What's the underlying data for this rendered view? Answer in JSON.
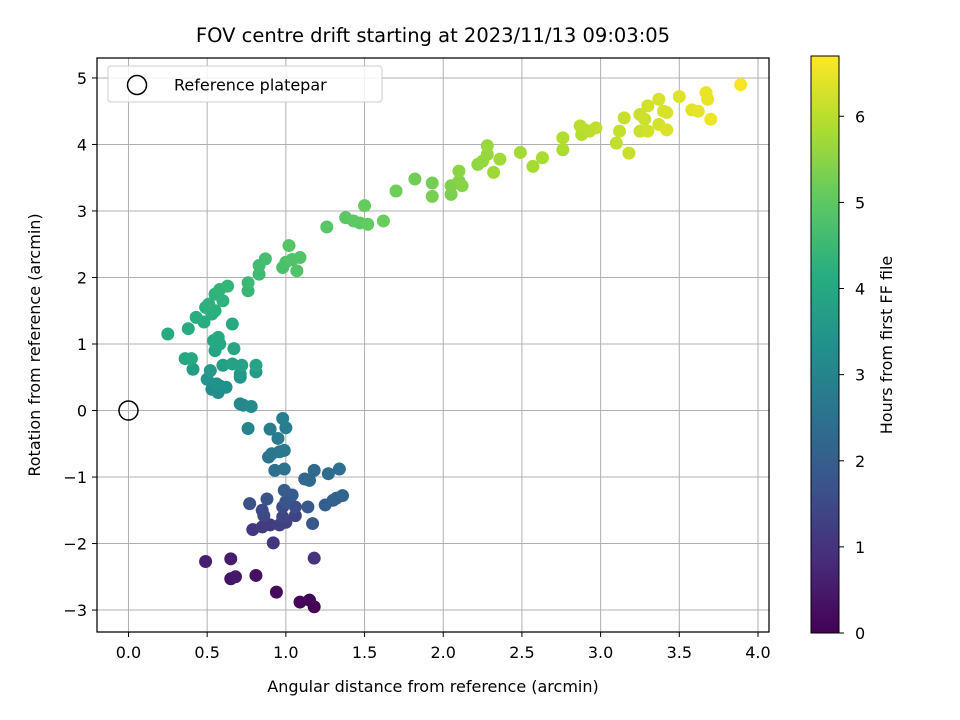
{
  "chart_data": {
    "type": "scatter",
    "title": "FOV centre drift starting at 2023/11/13 09:03:05",
    "xlabel": "Angular distance from reference (arcmin)",
    "ylabel": "Rotation from reference (arcmin)",
    "xlim": [
      -0.2,
      4.07
    ],
    "ylim": [
      -3.33,
      5.3
    ],
    "xticks": [
      "0.0",
      "0.5",
      "1.0",
      "1.5",
      "2.0",
      "2.5",
      "3.0",
      "3.5",
      "4.0"
    ],
    "yticks": [
      "−3",
      "−2",
      "−1",
      "0",
      "1",
      "2",
      "3",
      "4",
      "5"
    ],
    "grid": true,
    "legend": {
      "placement": "upper-left",
      "entries": [
        "Reference platepar"
      ]
    },
    "reference_point": {
      "x": 0.0,
      "y": 0.0,
      "label": "Reference platepar"
    },
    "colorbar": {
      "label": "Hours from first FF file",
      "colormap": "viridis",
      "range": [
        0,
        6.7
      ],
      "ticks": [
        "0",
        "1",
        "2",
        "3",
        "4",
        "5",
        "6"
      ]
    },
    "points": [
      {
        "x": 1.18,
        "y": -2.95,
        "h": 0.03
      },
      {
        "x": 1.15,
        "y": -2.85,
        "h": 0.08
      },
      {
        "x": 1.09,
        "y": -2.88,
        "h": 0.12
      },
      {
        "x": 0.94,
        "y": -2.73,
        "h": 0.2
      },
      {
        "x": 0.81,
        "y": -2.48,
        "h": 0.3
      },
      {
        "x": 0.65,
        "y": -2.53,
        "h": 0.38
      },
      {
        "x": 0.68,
        "y": -2.5,
        "h": 0.45
      },
      {
        "x": 0.65,
        "y": -2.23,
        "h": 0.52
      },
      {
        "x": 0.49,
        "y": -2.27,
        "h": 0.6
      },
      {
        "x": 1.18,
        "y": -2.22,
        "h": 1.0
      },
      {
        "x": 0.92,
        "y": -1.99,
        "h": 1.05
      },
      {
        "x": 0.79,
        "y": -1.79,
        "h": 1.1
      },
      {
        "x": 0.85,
        "y": -1.75,
        "h": 1.15
      },
      {
        "x": 0.9,
        "y": -1.72,
        "h": 1.2
      },
      {
        "x": 0.96,
        "y": -1.72,
        "h": 1.25
      },
      {
        "x": 1.0,
        "y": -1.68,
        "h": 1.3
      },
      {
        "x": 1.06,
        "y": -1.58,
        "h": 1.35
      },
      {
        "x": 0.98,
        "y": -1.6,
        "h": 1.4
      },
      {
        "x": 0.86,
        "y": -1.58,
        "h": 1.45
      },
      {
        "x": 0.85,
        "y": -1.5,
        "h": 1.5
      },
      {
        "x": 0.98,
        "y": -1.45,
        "h": 1.55
      },
      {
        "x": 1.06,
        "y": -1.45,
        "h": 1.6
      },
      {
        "x": 0.77,
        "y": -1.4,
        "h": 1.65
      },
      {
        "x": 0.88,
        "y": -1.33,
        "h": 1.7
      },
      {
        "x": 1.0,
        "y": -1.37,
        "h": 1.75
      },
      {
        "x": 1.17,
        "y": -1.7,
        "h": 1.8
      },
      {
        "x": 1.14,
        "y": -1.45,
        "h": 1.85
      },
      {
        "x": 1.04,
        "y": -1.27,
        "h": 1.9
      },
      {
        "x": 0.99,
        "y": -1.2,
        "h": 1.95
      },
      {
        "x": 1.25,
        "y": -1.42,
        "h": 2.0
      },
      {
        "x": 1.3,
        "y": -1.35,
        "h": 2.05
      },
      {
        "x": 1.32,
        "y": -1.32,
        "h": 2.1
      },
      {
        "x": 1.36,
        "y": -1.28,
        "h": 2.15
      },
      {
        "x": 1.12,
        "y": -1.03,
        "h": 2.2
      },
      {
        "x": 1.15,
        "y": -1.05,
        "h": 2.25
      },
      {
        "x": 1.18,
        "y": -0.9,
        "h": 2.3
      },
      {
        "x": 1.27,
        "y": -0.95,
        "h": 2.35
      },
      {
        "x": 1.34,
        "y": -0.88,
        "h": 2.4
      },
      {
        "x": 0.93,
        "y": -0.9,
        "h": 2.45
      },
      {
        "x": 0.99,
        "y": -0.88,
        "h": 2.5
      },
      {
        "x": 0.89,
        "y": -0.7,
        "h": 2.55
      },
      {
        "x": 0.91,
        "y": -0.65,
        "h": 2.6
      },
      {
        "x": 0.96,
        "y": -0.62,
        "h": 2.65
      },
      {
        "x": 0.99,
        "y": -0.6,
        "h": 2.7
      },
      {
        "x": 0.95,
        "y": -0.42,
        "h": 2.75
      },
      {
        "x": 0.9,
        "y": -0.28,
        "h": 2.8
      },
      {
        "x": 1.0,
        "y": -0.26,
        "h": 2.85
      },
      {
        "x": 0.98,
        "y": -0.12,
        "h": 2.9
      },
      {
        "x": 0.76,
        "y": -0.27,
        "h": 3.0
      },
      {
        "x": 0.71,
        "y": 0.1,
        "h": 3.05
      },
      {
        "x": 0.73,
        "y": 0.08,
        "h": 3.1
      },
      {
        "x": 0.78,
        "y": 0.06,
        "h": 3.15
      },
      {
        "x": 0.57,
        "y": 0.27,
        "h": 3.2
      },
      {
        "x": 0.53,
        "y": 0.32,
        "h": 3.25
      },
      {
        "x": 0.58,
        "y": 0.37,
        "h": 3.3
      },
      {
        "x": 0.62,
        "y": 0.35,
        "h": 3.35
      },
      {
        "x": 0.56,
        "y": 0.4,
        "h": 3.4
      },
      {
        "x": 0.5,
        "y": 0.47,
        "h": 3.45
      },
      {
        "x": 0.71,
        "y": 0.5,
        "h": 3.5
      },
      {
        "x": 0.71,
        "y": 0.55,
        "h": 3.55
      },
      {
        "x": 0.81,
        "y": 0.58,
        "h": 3.6
      },
      {
        "x": 0.52,
        "y": 0.6,
        "h": 3.65
      },
      {
        "x": 0.41,
        "y": 0.62,
        "h": 3.7
      },
      {
        "x": 0.6,
        "y": 0.68,
        "h": 3.75
      },
      {
        "x": 0.66,
        "y": 0.7,
        "h": 3.8
      },
      {
        "x": 0.72,
        "y": 0.68,
        "h": 3.85
      },
      {
        "x": 0.81,
        "y": 0.68,
        "h": 3.9
      },
      {
        "x": 0.36,
        "y": 0.78,
        "h": 3.95
      },
      {
        "x": 0.4,
        "y": 0.78,
        "h": 4.0
      },
      {
        "x": 0.55,
        "y": 0.9,
        "h": 3.92
      },
      {
        "x": 0.67,
        "y": 0.93,
        "h": 3.95
      },
      {
        "x": 0.58,
        "y": 1.0,
        "h": 4.0
      },
      {
        "x": 0.54,
        "y": 1.05,
        "h": 4.02
      },
      {
        "x": 0.57,
        "y": 1.1,
        "h": 4.05
      },
      {
        "x": 0.66,
        "y": 1.3,
        "h": 4.08
      },
      {
        "x": 0.25,
        "y": 1.15,
        "h": 4.1
      },
      {
        "x": 0.38,
        "y": 1.23,
        "h": 4.12
      },
      {
        "x": 0.48,
        "y": 1.33,
        "h": 4.15
      },
      {
        "x": 0.43,
        "y": 1.4,
        "h": 4.18
      },
      {
        "x": 0.53,
        "y": 1.45,
        "h": 4.2
      },
      {
        "x": 0.55,
        "y": 1.5,
        "h": 4.22
      },
      {
        "x": 0.49,
        "y": 1.55,
        "h": 4.25
      },
      {
        "x": 0.51,
        "y": 1.6,
        "h": 4.28
      },
      {
        "x": 0.6,
        "y": 1.65,
        "h": 4.3
      },
      {
        "x": 0.55,
        "y": 1.75,
        "h": 4.32
      },
      {
        "x": 0.58,
        "y": 1.82,
        "h": 4.35
      },
      {
        "x": 0.63,
        "y": 1.87,
        "h": 4.4
      },
      {
        "x": 0.76,
        "y": 1.8,
        "h": 4.45
      },
      {
        "x": 0.76,
        "y": 1.92,
        "h": 4.5
      },
      {
        "x": 0.83,
        "y": 2.05,
        "h": 4.55
      },
      {
        "x": 0.83,
        "y": 2.18,
        "h": 4.6
      },
      {
        "x": 0.87,
        "y": 2.28,
        "h": 4.65
      },
      {
        "x": 0.98,
        "y": 2.15,
        "h": 4.7
      },
      {
        "x": 1.0,
        "y": 2.23,
        "h": 4.75
      },
      {
        "x": 1.07,
        "y": 2.1,
        "h": 4.8
      },
      {
        "x": 1.04,
        "y": 2.27,
        "h": 4.82
      },
      {
        "x": 1.09,
        "y": 2.3,
        "h": 4.85
      },
      {
        "x": 1.02,
        "y": 2.48,
        "h": 4.88
      },
      {
        "x": 1.26,
        "y": 2.76,
        "h": 4.92
      },
      {
        "x": 1.38,
        "y": 2.9,
        "h": 4.96
      },
      {
        "x": 1.43,
        "y": 2.85,
        "h": 5.0
      },
      {
        "x": 1.47,
        "y": 2.82,
        "h": 5.03
      },
      {
        "x": 1.52,
        "y": 2.8,
        "h": 5.06
      },
      {
        "x": 1.5,
        "y": 3.08,
        "h": 5.1
      },
      {
        "x": 1.62,
        "y": 2.85,
        "h": 5.14
      },
      {
        "x": 1.7,
        "y": 3.3,
        "h": 5.18
      },
      {
        "x": 1.82,
        "y": 3.48,
        "h": 5.22
      },
      {
        "x": 1.93,
        "y": 3.42,
        "h": 5.26
      },
      {
        "x": 1.93,
        "y": 3.22,
        "h": 5.3
      },
      {
        "x": 2.05,
        "y": 3.25,
        "h": 5.34
      },
      {
        "x": 2.05,
        "y": 3.38,
        "h": 5.38
      },
      {
        "x": 2.1,
        "y": 3.45,
        "h": 5.42
      },
      {
        "x": 2.12,
        "y": 3.38,
        "h": 5.46
      },
      {
        "x": 2.1,
        "y": 3.6,
        "h": 5.5
      },
      {
        "x": 2.22,
        "y": 3.7,
        "h": 5.55
      },
      {
        "x": 2.25,
        "y": 3.75,
        "h": 5.6
      },
      {
        "x": 2.28,
        "y": 3.85,
        "h": 5.63
      },
      {
        "x": 2.28,
        "y": 3.98,
        "h": 5.66
      },
      {
        "x": 2.32,
        "y": 3.58,
        "h": 5.7
      },
      {
        "x": 2.36,
        "y": 3.78,
        "h": 5.73
      },
      {
        "x": 2.49,
        "y": 3.88,
        "h": 5.76
      },
      {
        "x": 2.57,
        "y": 3.67,
        "h": 5.8
      },
      {
        "x": 2.63,
        "y": 3.8,
        "h": 5.83
      },
      {
        "x": 2.76,
        "y": 3.92,
        "h": 5.86
      },
      {
        "x": 2.76,
        "y": 4.1,
        "h": 5.9
      },
      {
        "x": 2.88,
        "y": 4.15,
        "h": 5.93
      },
      {
        "x": 2.9,
        "y": 4.22,
        "h": 5.96
      },
      {
        "x": 2.87,
        "y": 4.28,
        "h": 6.0
      },
      {
        "x": 2.93,
        "y": 4.2,
        "h": 6.02
      },
      {
        "x": 2.97,
        "y": 4.25,
        "h": 6.05
      },
      {
        "x": 3.1,
        "y": 4.02,
        "h": 6.08
      },
      {
        "x": 3.12,
        "y": 4.2,
        "h": 6.1
      },
      {
        "x": 3.15,
        "y": 4.4,
        "h": 6.12
      },
      {
        "x": 3.18,
        "y": 3.87,
        "h": 6.14
      },
      {
        "x": 3.25,
        "y": 4.2,
        "h": 6.16
      },
      {
        "x": 3.25,
        "y": 4.45,
        "h": 6.18
      },
      {
        "x": 3.28,
        "y": 4.38,
        "h": 6.2
      },
      {
        "x": 3.3,
        "y": 4.58,
        "h": 6.22
      },
      {
        "x": 3.3,
        "y": 4.2,
        "h": 6.24
      },
      {
        "x": 3.37,
        "y": 4.3,
        "h": 6.26
      },
      {
        "x": 3.37,
        "y": 4.68,
        "h": 6.28
      },
      {
        "x": 3.4,
        "y": 4.5,
        "h": 6.3
      },
      {
        "x": 3.42,
        "y": 4.48,
        "h": 6.32
      },
      {
        "x": 3.42,
        "y": 4.22,
        "h": 6.34
      },
      {
        "x": 3.5,
        "y": 4.72,
        "h": 6.38
      },
      {
        "x": 3.58,
        "y": 4.52,
        "h": 6.42
      },
      {
        "x": 3.62,
        "y": 4.5,
        "h": 6.45
      },
      {
        "x": 3.67,
        "y": 4.78,
        "h": 6.48
      },
      {
        "x": 3.68,
        "y": 4.68,
        "h": 6.5
      },
      {
        "x": 3.7,
        "y": 4.38,
        "h": 6.55
      },
      {
        "x": 3.89,
        "y": 4.9,
        "h": 6.65
      }
    ]
  }
}
